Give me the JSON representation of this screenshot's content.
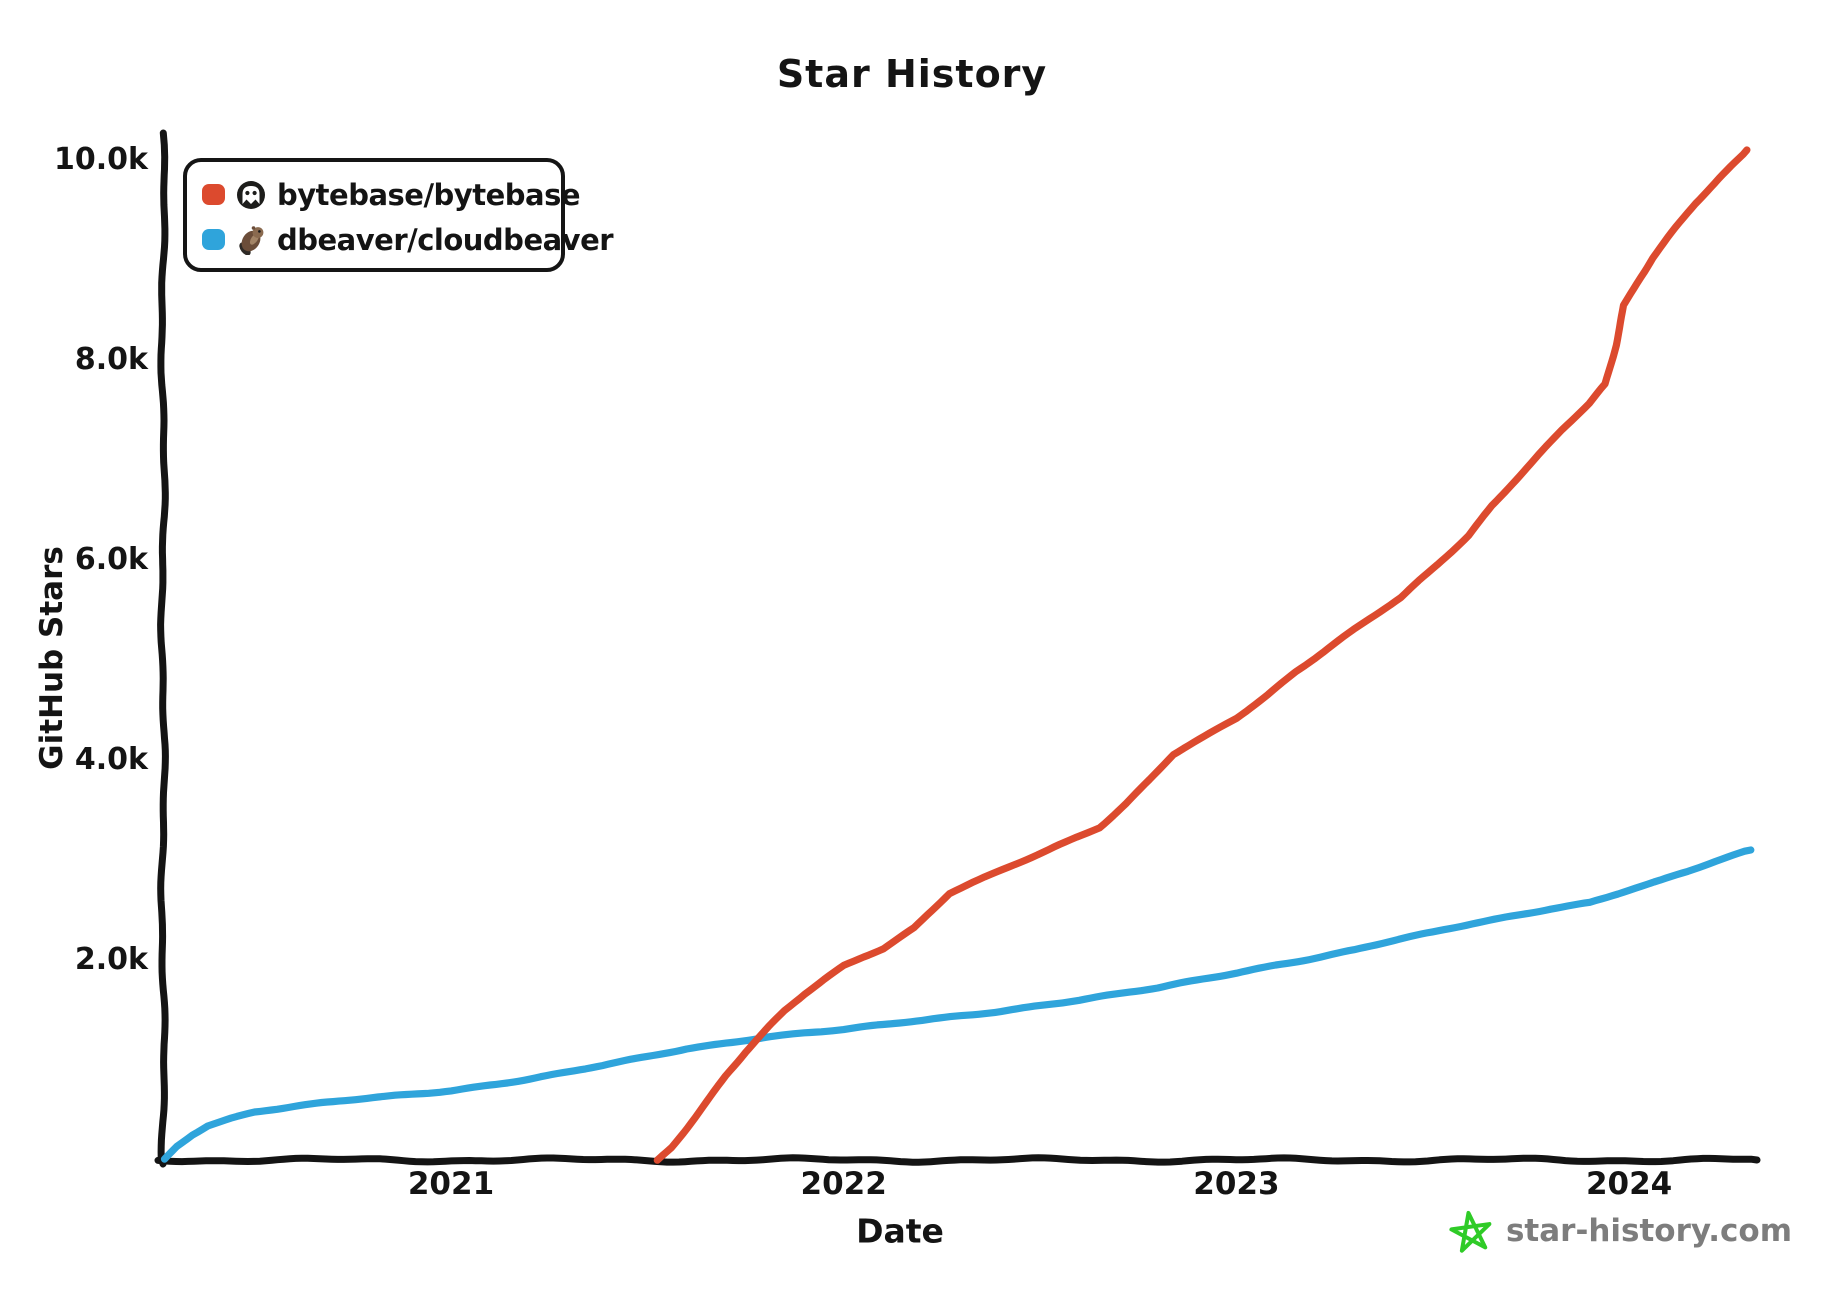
{
  "title": "Star History",
  "axes": {
    "x_label": "Date",
    "y_label": "GitHub Stars"
  },
  "legend": {
    "items": [
      {
        "repo": "bytebase/bytebase",
        "color": "#dc4a2e",
        "avatar": "bytebase-avatar"
      },
      {
        "repo": "dbeaver/cloudbeaver",
        "color": "#2fa4db",
        "avatar": "beaver-avatar"
      }
    ]
  },
  "watermark": {
    "text": "star-history.com",
    "icon": "green-star",
    "icon_color": "#2fcb27",
    "text_color": "#7d7d7d"
  },
  "colors": {
    "axis": "#141414",
    "text": "#141414"
  },
  "chart_data": {
    "type": "line",
    "title": "Star History",
    "xlabel": "Date",
    "ylabel": "GitHub Stars",
    "x_ticks": [
      2021,
      2022,
      2023,
      2024
    ],
    "y_ticks": [
      {
        "label": "2.0k",
        "value": 2000
      },
      {
        "label": "4.0k",
        "value": 4000
      },
      {
        "label": "6.0k",
        "value": 6000
      },
      {
        "label": "8.0k",
        "value": 8000
      },
      {
        "label": "10.0k",
        "value": 10000
      }
    ],
    "xlim": [
      2020.27,
      2024.33
    ],
    "ylim": [
      0,
      10270
    ],
    "grid": false,
    "legend_position": "top-left",
    "x_unit": "year",
    "y_unit": "stars",
    "series": [
      {
        "name": "bytebase/bytebase",
        "color": "#dc4a2e",
        "points": [
          [
            2021.525,
            0
          ],
          [
            2021.56,
            130
          ],
          [
            2021.6,
            330
          ],
          [
            2021.65,
            580
          ],
          [
            2021.7,
            840
          ],
          [
            2021.75,
            1070
          ],
          [
            2021.8,
            1280
          ],
          [
            2021.85,
            1490
          ],
          [
            2021.9,
            1660
          ],
          [
            2021.95,
            1810
          ],
          [
            2022.0,
            1950
          ],
          [
            2022.05,
            2040
          ],
          [
            2022.1,
            2120
          ],
          [
            2022.18,
            2320
          ],
          [
            2022.27,
            2660
          ],
          [
            2022.36,
            2820
          ],
          [
            2022.45,
            2980
          ],
          [
            2022.55,
            3160
          ],
          [
            2022.65,
            3330
          ],
          [
            2022.72,
            3570
          ],
          [
            2022.78,
            3800
          ],
          [
            2022.84,
            4050
          ],
          [
            2022.92,
            4230
          ],
          [
            2023.0,
            4420
          ],
          [
            2023.08,
            4660
          ],
          [
            2023.15,
            4890
          ],
          [
            2023.22,
            5080
          ],
          [
            2023.3,
            5300
          ],
          [
            2023.42,
            5620
          ],
          [
            2023.5,
            5910
          ],
          [
            2023.59,
            6250
          ],
          [
            2023.65,
            6550
          ],
          [
            2023.7,
            6760
          ],
          [
            2023.76,
            7000
          ],
          [
            2023.83,
            7300
          ],
          [
            2023.9,
            7560
          ],
          [
            2023.94,
            7760
          ],
          [
            2023.965,
            8150
          ],
          [
            2023.985,
            8550
          ],
          [
            2024.02,
            8780
          ],
          [
            2024.06,
            9020
          ],
          [
            2024.12,
            9320
          ],
          [
            2024.17,
            9560
          ],
          [
            2024.23,
            9810
          ],
          [
            2024.3,
            10100
          ]
        ]
      },
      {
        "name": "dbeaver/cloudbeaver",
        "color": "#2fa4db",
        "points": [
          [
            2020.27,
            10
          ],
          [
            2020.3,
            140
          ],
          [
            2020.34,
            260
          ],
          [
            2020.38,
            350
          ],
          [
            2020.44,
            420
          ],
          [
            2020.5,
            480
          ],
          [
            2020.6,
            530
          ],
          [
            2020.7,
            575
          ],
          [
            2020.8,
            620
          ],
          [
            2020.9,
            660
          ],
          [
            2021.0,
            700
          ],
          [
            2021.1,
            755
          ],
          [
            2021.2,
            810
          ],
          [
            2021.3,
            875
          ],
          [
            2021.4,
            950
          ],
          [
            2021.5,
            1030
          ],
          [
            2021.6,
            1115
          ],
          [
            2021.7,
            1175
          ],
          [
            2021.8,
            1235
          ],
          [
            2021.9,
            1270
          ],
          [
            2022.0,
            1300
          ],
          [
            2022.1,
            1345
          ],
          [
            2022.2,
            1395
          ],
          [
            2022.3,
            1445
          ],
          [
            2022.4,
            1495
          ],
          [
            2022.5,
            1550
          ],
          [
            2022.6,
            1600
          ],
          [
            2022.7,
            1655
          ],
          [
            2022.8,
            1715
          ],
          [
            2022.9,
            1795
          ],
          [
            2023.0,
            1875
          ],
          [
            2023.1,
            1955
          ],
          [
            2023.2,
            2025
          ],
          [
            2023.3,
            2100
          ],
          [
            2023.4,
            2190
          ],
          [
            2023.5,
            2270
          ],
          [
            2023.6,
            2360
          ],
          [
            2023.7,
            2440
          ],
          [
            2023.8,
            2520
          ],
          [
            2023.9,
            2580
          ],
          [
            2024.0,
            2700
          ],
          [
            2024.08,
            2790
          ],
          [
            2024.15,
            2880
          ],
          [
            2024.22,
            2980
          ],
          [
            2024.31,
            3100
          ]
        ]
      }
    ]
  }
}
